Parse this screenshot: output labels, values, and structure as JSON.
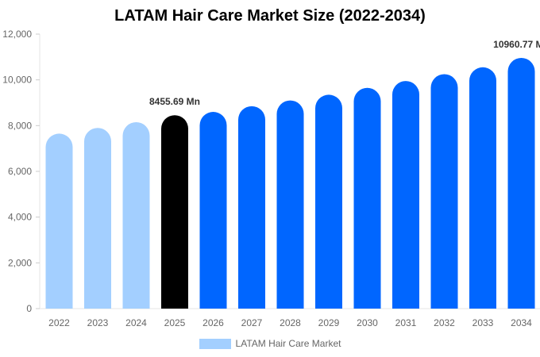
{
  "chart_data": {
    "type": "bar",
    "title": "LATAM Hair Care Market Size (2022-2034)",
    "categories": [
      "2022",
      "2023",
      "2024",
      "2025",
      "2026",
      "2027",
      "2028",
      "2029",
      "2030",
      "2031",
      "2032",
      "2033",
      "2034"
    ],
    "series": [
      {
        "name": "LATAM Hair Care Market",
        "values": [
          7650,
          7900,
          8150,
          8455.69,
          8600,
          8850,
          9100,
          9350,
          9650,
          9950,
          10250,
          10550,
          10960.77
        ]
      }
    ],
    "ylim": [
      0,
      12000
    ],
    "yticks": [
      0,
      2000,
      4000,
      6000,
      8000,
      10000,
      12000
    ],
    "ytick_labels": [
      "0",
      "2,000",
      "4,000",
      "6,000",
      "8,000",
      "10,000",
      "12,000"
    ],
    "xlabel": "",
    "ylabel": "",
    "grid": false,
    "legend_position": "bottom",
    "bar_colors": {
      "historic": "#a3cfff",
      "current": "#000000",
      "forecast": "#0066ff"
    },
    "historic_count": 3,
    "current_index": 3,
    "annotations": [
      {
        "index": 3,
        "text": "8455.69 Mn"
      },
      {
        "index": 12,
        "text": "10960.77 Mn"
      }
    ]
  }
}
